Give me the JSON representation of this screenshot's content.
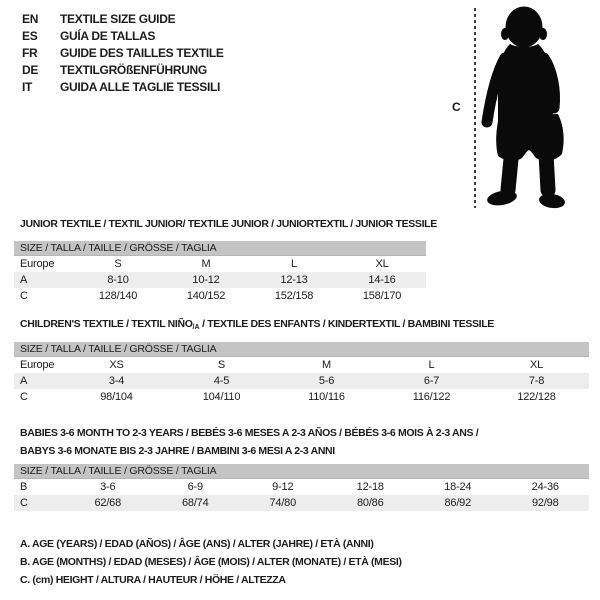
{
  "colors": {
    "background": "#ffffff",
    "size_bar_bg": "#c4c4c4",
    "row_shade_bg": "#ededed",
    "text": "#1c1c1c",
    "silhouette": "#0a0a0a"
  },
  "language_guide": {
    "items": [
      {
        "code": "EN",
        "label": "TEXTILE SIZE GUIDE"
      },
      {
        "code": "ES",
        "label": "GUÍA DE TALLAS"
      },
      {
        "code": "FR",
        "label": "GUIDE DES TAILLES TEXTILE"
      },
      {
        "code": "DE",
        "label": "TEXTILGRÖßENFÜHRUNG"
      },
      {
        "code": "IT",
        "label": "GUIDA ALLE TAGLIE TESSILI"
      }
    ]
  },
  "figure": {
    "marker_label": "C",
    "image_name": "toddler-silhouette"
  },
  "sections": [
    {
      "title": "JUNIOR TEXTILE / TEXTIL JUNIOR/ TEXTILE JUNIOR / JUNIORTEXTIL / JUNIOR TESSILE",
      "size_header": "SIZE / TALLA / TAILLE / GRÖSSE / TAGLIA",
      "rows": [
        {
          "cells": [
            "Europe",
            "S",
            "M",
            "L",
            "XL"
          ],
          "shade": false
        },
        {
          "cells": [
            "A",
            "8-10",
            "10-12",
            "12-13",
            "14-16"
          ],
          "shade": true
        },
        {
          "cells": [
            "C",
            "128/140",
            "140/152",
            "152/158",
            "158/170"
          ],
          "shade": false
        }
      ]
    },
    {
      "title_pre": "CHILDREN'S TEXTILE / TEXTIL NIÑO",
      "title_sub": "/A",
      "title_post": " / TEXTILE DES ENFANTS / KINDERTEXTIL / BAMBINI TESSILE",
      "size_header": "SIZE / TALLA / TAILLE / GRÖSSE / TAGLIA",
      "rows": [
        {
          "cells": [
            "Europe",
            "XS",
            "S",
            "M",
            "L",
            "XL"
          ],
          "shade": false
        },
        {
          "cells": [
            "A",
            "3-4",
            "4-5",
            "5-6",
            "6-7",
            "7-8"
          ],
          "shade": true
        },
        {
          "cells": [
            "C",
            "98/104",
            "104/110",
            "110/116",
            "116/122",
            "122/128"
          ],
          "shade": false
        }
      ]
    },
    {
      "title_line1": "BABIES 3-6 MONTH TO 2-3 YEARS / BEBÉS 3-6 MESES A 2-3 AÑOS / BÉBÉS 3-6 MOIS À 2-3 ANS /",
      "title_line2": "BABYS 3-6 MONATE BIS 2-3 JAHRE / BAMBINI 3-6 MESI A 2-3 ANNI",
      "size_header": "SIZE / TALLA / TAILLE / GRÖSSE / TAGLIA",
      "rows": [
        {
          "cells": [
            "B",
            "3-6",
            "6-9",
            "9-12",
            "12-18",
            "18-24",
            "24-36"
          ],
          "shade": false
        },
        {
          "cells": [
            "C",
            "62/68",
            "68/74",
            "74/80",
            "80/86",
            "86/92",
            "92/98"
          ],
          "shade": true
        }
      ]
    }
  ],
  "footnotes": [
    "A. AGE (YEARS) / EDAD (AÑOS) / ÂGE (ANS) / ALTER (JAHRE) / ETÀ (ANNI)",
    "B. AGE (MONTHS) / EDAD (MESES) / ÂGE (MOIS) / ALTER (MONATE) / ETÀ (MESI)",
    "C. (cm) HEIGHT / ALTURA / HAUTEUR / HÖHE / ALTEZZA"
  ]
}
